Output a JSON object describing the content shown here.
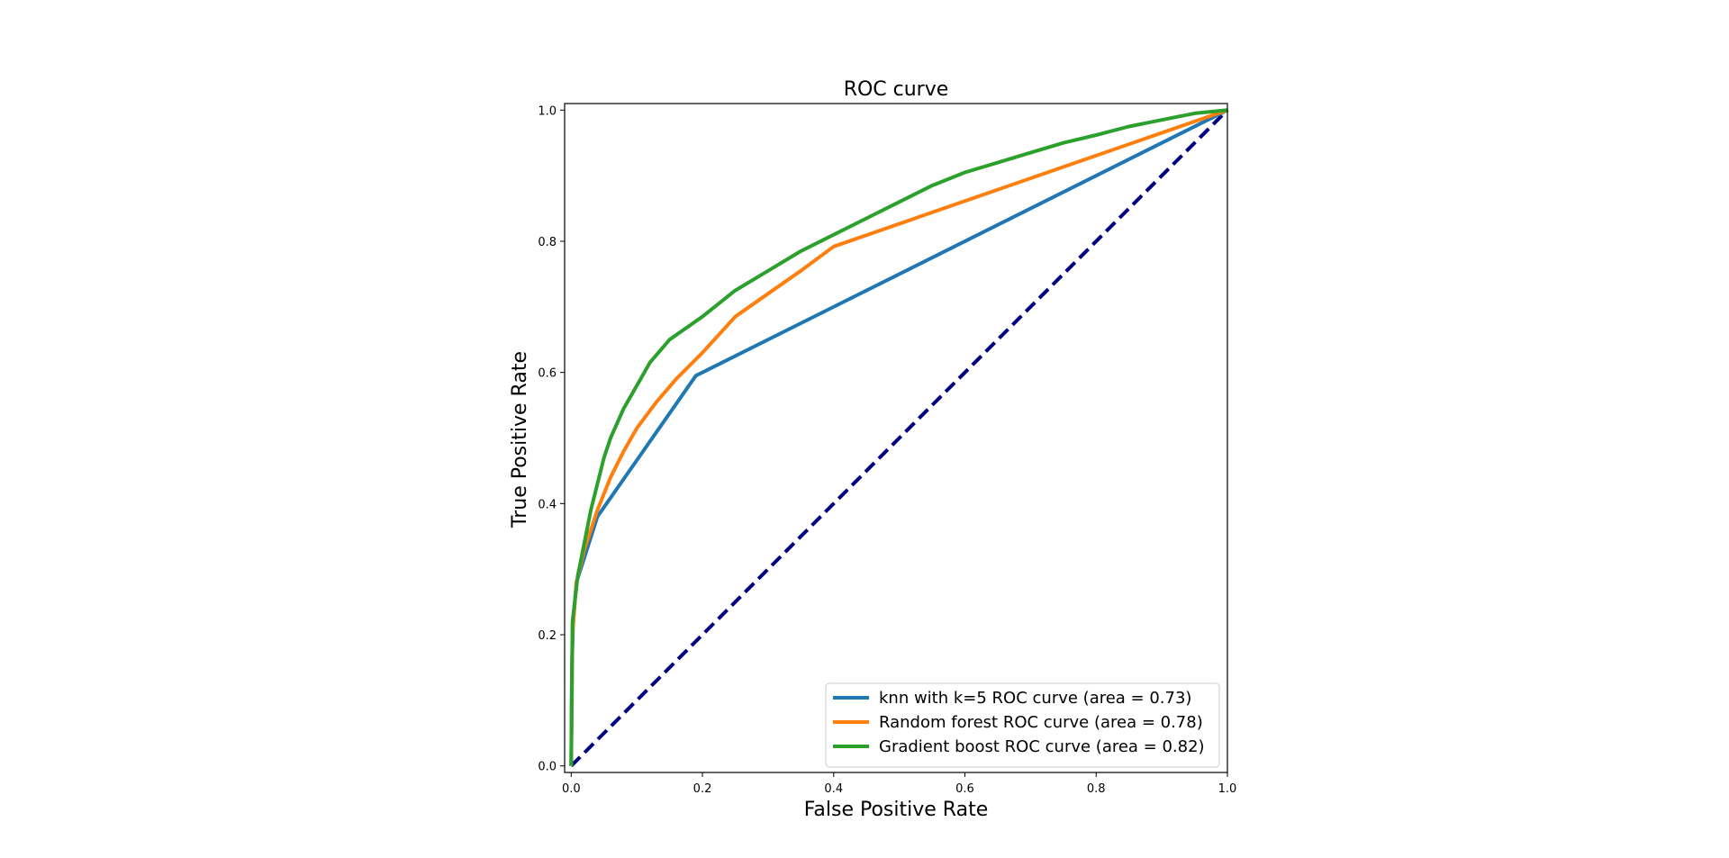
{
  "chart_data": {
    "type": "line",
    "title": "ROC curve",
    "xlabel": "False Positive Rate",
    "ylabel": "True Positive Rate",
    "xlim": [
      -0.01,
      1.0
    ],
    "ylim": [
      -0.01,
      1.01
    ],
    "xticks": [
      "0.0",
      "0.2",
      "0.4",
      "0.6",
      "0.8",
      "1.0"
    ],
    "yticks": [
      "0.0",
      "0.2",
      "0.4",
      "0.6",
      "0.8",
      "1.0"
    ],
    "grid": false,
    "legend_position": "lower-right",
    "series": [
      {
        "name": "knn with k=5 ROC curve (area = 0.73)",
        "color": "#1f77b4",
        "points": [
          [
            0,
            0
          ],
          [
            0.001,
            0.15
          ],
          [
            0.003,
            0.22
          ],
          [
            0.008,
            0.28
          ],
          [
            0.04,
            0.38
          ],
          [
            0.19,
            0.595
          ],
          [
            1.0,
            1.0
          ]
        ]
      },
      {
        "name": "Random forest ROC curve (area = 0.78)",
        "color": "#ff7f0e",
        "points": [
          [
            0,
            0
          ],
          [
            0.002,
            0.2
          ],
          [
            0.008,
            0.28
          ],
          [
            0.02,
            0.33
          ],
          [
            0.04,
            0.39
          ],
          [
            0.06,
            0.44
          ],
          [
            0.08,
            0.48
          ],
          [
            0.1,
            0.515
          ],
          [
            0.13,
            0.555
          ],
          [
            0.16,
            0.59
          ],
          [
            0.2,
            0.63
          ],
          [
            0.25,
            0.685
          ],
          [
            0.3,
            0.72
          ],
          [
            0.35,
            0.755
          ],
          [
            0.4,
            0.792
          ],
          [
            1.0,
            1.0
          ]
        ]
      },
      {
        "name": "Gradient boost ROC curve (area = 0.82)",
        "color": "#2ca02c",
        "points": [
          [
            0,
            0
          ],
          [
            0.002,
            0.22
          ],
          [
            0.01,
            0.29
          ],
          [
            0.02,
            0.34
          ],
          [
            0.03,
            0.39
          ],
          [
            0.04,
            0.43
          ],
          [
            0.05,
            0.47
          ],
          [
            0.06,
            0.5
          ],
          [
            0.08,
            0.545
          ],
          [
            0.1,
            0.58
          ],
          [
            0.12,
            0.615
          ],
          [
            0.15,
            0.65
          ],
          [
            0.2,
            0.685
          ],
          [
            0.25,
            0.725
          ],
          [
            0.3,
            0.755
          ],
          [
            0.35,
            0.785
          ],
          [
            0.4,
            0.81
          ],
          [
            0.45,
            0.835
          ],
          [
            0.5,
            0.86
          ],
          [
            0.55,
            0.885
          ],
          [
            0.6,
            0.905
          ],
          [
            0.65,
            0.92
          ],
          [
            0.7,
            0.935
          ],
          [
            0.75,
            0.95
          ],
          [
            0.8,
            0.962
          ],
          [
            0.85,
            0.975
          ],
          [
            0.9,
            0.985
          ],
          [
            0.95,
            0.995
          ],
          [
            1.0,
            1.0
          ]
        ]
      }
    ],
    "reference_line": {
      "color": "#000080",
      "style": "dashed",
      "points": [
        [
          0,
          0
        ],
        [
          1,
          1
        ]
      ]
    }
  }
}
